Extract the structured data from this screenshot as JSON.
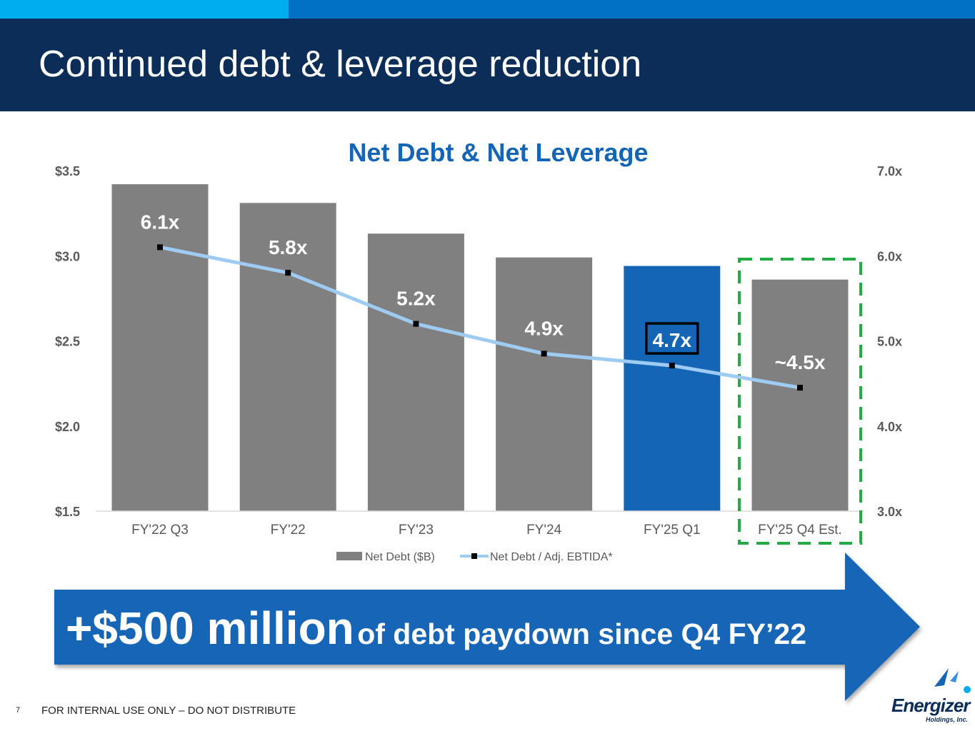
{
  "page": {
    "title": "Continued debt & leverage reduction",
    "page_number": "7",
    "footer": "FOR INTERNAL USE ONLY – DO NOT DISTRIBUTE"
  },
  "callout": {
    "big": "+$500 million",
    "small": "of debt paydown since Q4 FY’22"
  },
  "logo": {
    "name": "Energizer",
    "sub": "Holdings, Inc."
  },
  "colors": {
    "bar": "#808080",
    "bar_highlight": "#1565b7",
    "line": "#9ecbf2",
    "header": "#0b2d57",
    "dashed_box": "#22aa44"
  },
  "chart_data": {
    "type": "bar",
    "title": "Net Debt & Net Leverage",
    "categories": [
      "FY'22 Q3",
      "FY'22",
      "FY'23",
      "FY'24",
      "FY'25 Q1",
      "FY'25 Q4 Est."
    ],
    "series": [
      {
        "name": "Net Debt ($B)",
        "type": "bar",
        "axis": "left",
        "values": [
          3.42,
          3.31,
          3.13,
          2.99,
          2.94,
          2.86
        ],
        "highlight_index": 4
      },
      {
        "name": "Net Debt / Adj. EBTIDA*",
        "type": "line",
        "axis": "right",
        "values": [
          6.1,
          5.8,
          5.2,
          4.85,
          4.71,
          4.45
        ],
        "labels": [
          "6.1x",
          "5.8x",
          "5.2x",
          "4.9x",
          "4.7x",
          "~4.5x"
        ],
        "boxed_index": 4
      }
    ],
    "y_left": {
      "min": 1.5,
      "max": 3.5,
      "ticks": [
        3.5,
        3.0,
        2.5,
        2.0,
        1.5
      ],
      "tick_labels": [
        "$3.5",
        "$3.0",
        "$2.5",
        "$2.0",
        "$1.5"
      ]
    },
    "y_right": {
      "min": 3.0,
      "max": 7.0,
      "ticks": [
        7.0,
        6.0,
        5.0,
        4.0,
        3.0
      ],
      "tick_labels": [
        "7.0x",
        "6.0x",
        "5.0x",
        "4.0x",
        "3.0x"
      ]
    },
    "estimate_index": 5,
    "legend": [
      "Net Debt ($B)",
      "Net Debt / Adj. EBTIDA*"
    ],
    "legend_position": "bottom"
  }
}
